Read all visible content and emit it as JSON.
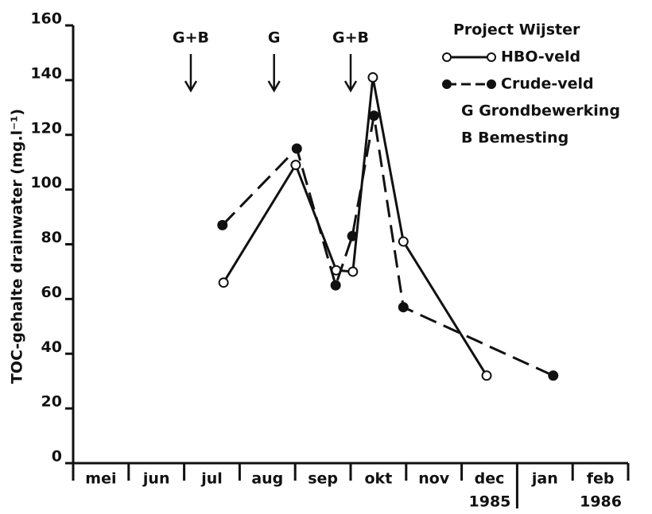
{
  "chart_data": {
    "type": "line",
    "ylabel": "TOC-gehalte drainwater (mg.l⁻¹)",
    "categories": [
      "mei",
      "jun",
      "jul",
      "aug",
      "sep",
      "okt",
      "nov",
      "dec",
      "jan",
      "feb"
    ],
    "year_labels": [
      "1985",
      "1986"
    ],
    "xlim": [
      0,
      10
    ],
    "ylim": [
      0,
      160
    ],
    "yticks": [
      0,
      20,
      40,
      60,
      80,
      100,
      120,
      140,
      160
    ],
    "legend_title": "Project Wijster",
    "legend_notes": [
      "G Grondbewerking",
      "B Bemesting"
    ],
    "annotations": [
      {
        "text": "G+B",
        "x": 2.12
      },
      {
        "text": "G",
        "x": 3.62
      },
      {
        "text": "G+B",
        "x": 5.0
      }
    ],
    "series": [
      {
        "name": "HBO-veld",
        "color": "#111111",
        "dash": "solid",
        "marker": "open",
        "x": [
          2.71,
          4.01,
          4.74,
          5.04,
          5.4,
          5.95,
          7.45
        ],
        "values": [
          66,
          109,
          70.5,
          70,
          141,
          81,
          32
        ]
      },
      {
        "name": "Crude-veld",
        "color": "#111111",
        "dash": "dashed",
        "marker": "filled",
        "x": [
          2.69,
          4.03,
          4.73,
          5.03,
          5.42,
          5.95,
          8.65
        ],
        "values": [
          87,
          115,
          65,
          83,
          127,
          57,
          32
        ]
      }
    ]
  }
}
